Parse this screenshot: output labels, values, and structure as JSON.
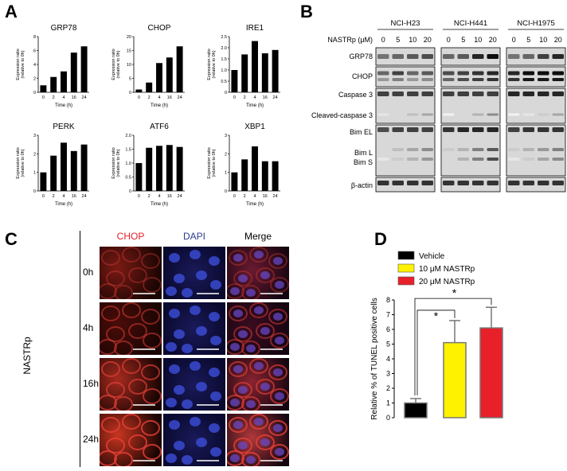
{
  "panels": {
    "a": "A",
    "b": "B",
    "c": "C",
    "d": "D"
  },
  "panel_a": {
    "xlabel": "Time (h)",
    "ylabel": "Expression ratio (relative to 0h)",
    "ylabel_line1": "Expression ratio",
    "ylabel_line2": "(relative to 0h)",
    "categories": [
      "0",
      "2",
      "4",
      "16",
      "24"
    ]
  },
  "chart_data": [
    {
      "type": "bar",
      "title": "GRP78",
      "categories": [
        "0",
        "2",
        "4",
        "16",
        "24"
      ],
      "values": [
        1.0,
        2.2,
        3.0,
        5.7,
        6.6
      ],
      "xlabel": "Time (h)",
      "ylabel": "Expression ratio (relative to 0h)",
      "ylim": [
        0,
        8
      ],
      "yticks": [
        0,
        2,
        4,
        6,
        8
      ]
    },
    {
      "type": "bar",
      "title": "CHOP",
      "categories": [
        "0",
        "2",
        "4",
        "16",
        "24"
      ],
      "values": [
        1.0,
        3.5,
        10.5,
        12.5,
        16.5
      ],
      "xlabel": "Time (h)",
      "ylabel": "Expression ratio (relative to 0h)",
      "ylim": [
        0,
        20
      ],
      "yticks": [
        0,
        5,
        10,
        15,
        20
      ]
    },
    {
      "type": "bar",
      "title": "IRE1",
      "categories": [
        "0",
        "2",
        "4",
        "16",
        "24"
      ],
      "values": [
        1.0,
        1.7,
        2.3,
        1.75,
        1.9
      ],
      "xlabel": "Time (h)",
      "ylabel": "Expression ratio (relative to 0h)",
      "ylim": [
        0,
        2.5
      ],
      "yticks": [
        0,
        0.5,
        1.0,
        1.5,
        2.0,
        2.5
      ]
    },
    {
      "type": "bar",
      "title": "PERK",
      "categories": [
        "0",
        "2",
        "4",
        "16",
        "24"
      ],
      "values": [
        1.0,
        1.9,
        2.6,
        2.15,
        2.5
      ],
      "xlabel": "Time (h)",
      "ylabel": "Expression ratio (relative to 0h)",
      "ylim": [
        0,
        3
      ],
      "yticks": [
        0,
        1,
        2,
        3
      ]
    },
    {
      "type": "bar",
      "title": "ATF6",
      "categories": [
        "0",
        "2",
        "4",
        "16",
        "24"
      ],
      "values": [
        1.0,
        1.55,
        1.62,
        1.65,
        1.58
      ],
      "xlabel": "Time (h)",
      "ylabel": "Expression ratio (relative to 0h)",
      "ylim": [
        0,
        2.0
      ],
      "yticks": [
        0,
        0.5,
        1.0,
        1.5,
        2.0
      ]
    },
    {
      "type": "bar",
      "title": "XBP1",
      "categories": [
        "0",
        "2",
        "4",
        "16",
        "24"
      ],
      "values": [
        1.0,
        1.7,
        2.4,
        1.6,
        1.6
      ],
      "xlabel": "Time (h)",
      "ylabel": "Expression ratio (relative to 0h)",
      "ylim": [
        0,
        3
      ],
      "yticks": [
        0,
        1,
        2,
        3
      ]
    },
    {
      "type": "bar",
      "title": "",
      "categories": [
        "Vehicle",
        "10 μM NASTRp",
        "20 μM NASTRp"
      ],
      "values": [
        1.0,
        5.1,
        6.1
      ],
      "errors": [
        0.3,
        1.5,
        1.4
      ],
      "colors": [
        "#000000",
        "#fff200",
        "#e8202a"
      ],
      "ylabel": "Relative % of TUNEL positive cells",
      "ylim": [
        0,
        8
      ],
      "yticks": [
        0,
        1,
        2,
        3,
        4,
        5,
        6,
        7,
        8
      ],
      "significance": [
        "*",
        "*"
      ],
      "legend": "top-left"
    }
  ],
  "panel_b": {
    "treatment_label": "NASTRp (μM)",
    "cell_lines": [
      "NCI-H23",
      "NCI-H441",
      "NCI-H1975"
    ],
    "doses": [
      "0",
      "5",
      "10",
      "20"
    ],
    "rows": [
      {
        "label": "GRP78"
      },
      {
        "label": "CHOP"
      },
      {
        "label": "Caspase 3"
      },
      {
        "label": "Cleaved-caspase 3"
      },
      {
        "label": "Bim EL"
      },
      {
        "label": "Bim L"
      },
      {
        "label": "Bim S"
      },
      {
        "label": "β-actin"
      }
    ]
  },
  "panel_c": {
    "columns": [
      "CHOP",
      "DAPI",
      "Merge"
    ],
    "column_colors": [
      "#e8202a",
      "#2b3b8f",
      "#000000"
    ],
    "rows": [
      "0h",
      "4h",
      "16h",
      "24h"
    ],
    "side_label": "NASTRp"
  },
  "panel_d": {
    "legend": [
      "Vehicle",
      "10 μM NASTRp",
      "20 μM NASTRp"
    ],
    "ylabel": "Relative % of TUNEL positive cells"
  }
}
